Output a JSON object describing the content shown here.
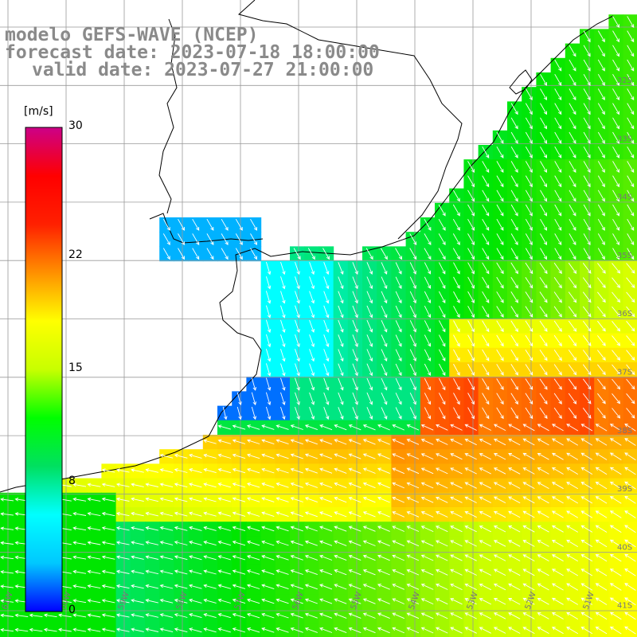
{
  "title": {
    "line1": "modelo GEFS-WAVE (NCEP)",
    "line2": "forecast date: 2023-07-18 18:00:00",
    "line3": "valid date: 2023-07-27 21:00:00"
  },
  "colorbar": {
    "unit": "[m/s]",
    "ticks": [
      {
        "value": 30,
        "label": "30"
      },
      {
        "value": 22,
        "label": "22"
      },
      {
        "value": 15,
        "label": "15"
      },
      {
        "value": 8,
        "label": "8"
      },
      {
        "value": 0,
        "label": "0"
      }
    ],
    "min": 0,
    "max": 30,
    "colors": [
      "#0000ff",
      "#00c8ff",
      "#00ffff",
      "#00e060",
      "#00ff00",
      "#c8ff00",
      "#ffff00",
      "#ff9000",
      "#ff2000",
      "#ff0000",
      "#cc0088"
    ]
  },
  "map": {
    "lon_range": [
      -61,
      -50
    ],
    "lat_range": [
      -41,
      -30
    ],
    "lat_labels": [
      "32S",
      "33S",
      "34S",
      "35S",
      "36S",
      "37S",
      "38S",
      "39S",
      "40S",
      "41S"
    ],
    "lon_labels": [
      "61W",
      "60W",
      "59W",
      "58W",
      "57W",
      "56W",
      "55W",
      "54W",
      "53W",
      "52W",
      "51W"
    ]
  }
}
